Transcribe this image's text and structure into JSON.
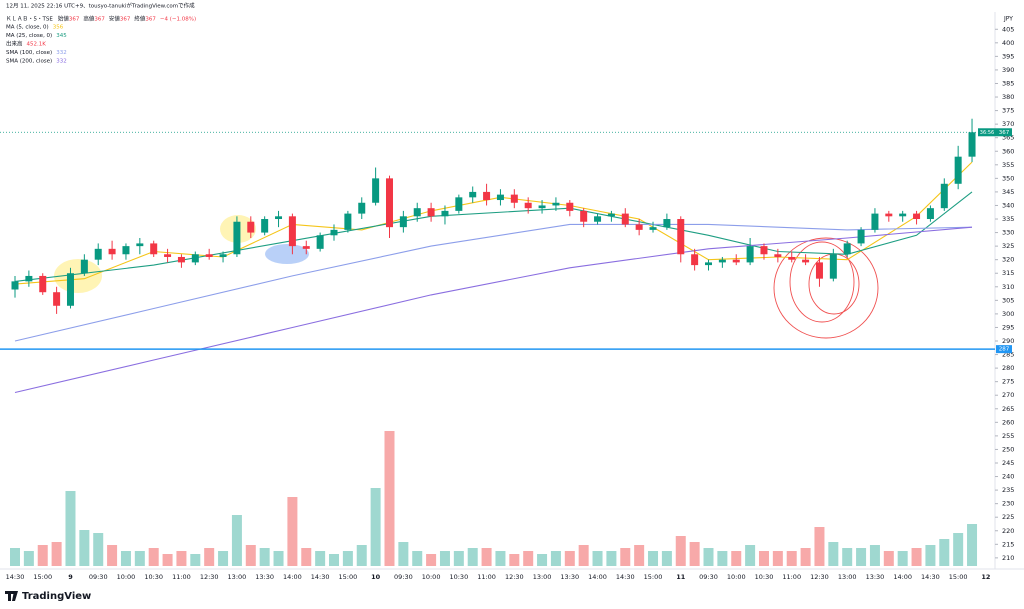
{
  "chart_data": {
    "type": "candlestick",
    "header": "12月 11, 2025 22:16 UTC+9、tousyo-tanukiがTradingView.comで作成",
    "symbol": "ＫＬＡＢ・5・TSE",
    "ohlc_legend": [
      {
        "label": "始値",
        "value": 367
      },
      {
        "label": "高値",
        "value": 367
      },
      {
        "label": "安値",
        "value": 367
      },
      {
        "label": "終値",
        "value": 367
      }
    ],
    "change": "−4 (−1.08%)",
    "currency": "JPY",
    "brand": "TradingView",
    "volume_name": "出来高",
    "volume_last": "452.1K",
    "categories": [
      "14:30",
      null,
      "15:00",
      null,
      "9",
      null,
      "09:30",
      null,
      "10:00",
      null,
      "10:30",
      null,
      "11:00",
      null,
      "12:30",
      null,
      "13:00",
      null,
      "13:30",
      null,
      "14:00",
      null,
      "14:30",
      null,
      "15:00",
      null,
      "10",
      null,
      "09:30",
      null,
      "10:00",
      null,
      "10:30",
      null,
      "11:00",
      null,
      "12:30",
      null,
      "13:00",
      null,
      "13:30",
      null,
      "14:00",
      null,
      "14:30",
      null,
      "15:00",
      null,
      "11",
      null,
      "09:30",
      null,
      "10:00",
      null,
      "10:30",
      null,
      "11:00",
      null,
      "12:30",
      null,
      "13:00",
      null,
      "13:30",
      null,
      "14:00",
      null,
      "14:30",
      null,
      "15:00",
      null,
      "12"
    ],
    "ohlc": [
      [
        309,
        314,
        306,
        312
      ],
      [
        312,
        316,
        310,
        314
      ],
      [
        314,
        315,
        307,
        308
      ],
      [
        308,
        310,
        300,
        303
      ],
      [
        303,
        317,
        302,
        315
      ],
      [
        315,
        322,
        314,
        320
      ],
      [
        320,
        326,
        318,
        324
      ],
      [
        324,
        327,
        320,
        322
      ],
      [
        322,
        326,
        320,
        325
      ],
      [
        325,
        328,
        322,
        326
      ],
      [
        326,
        327,
        321,
        322
      ],
      [
        322,
        324,
        319,
        321
      ],
      [
        321,
        322,
        317,
        319
      ],
      [
        319,
        323,
        318,
        322
      ],
      [
        322,
        324,
        320,
        321
      ],
      [
        321,
        323,
        319,
        322
      ],
      [
        322,
        336,
        321,
        334
      ],
      [
        334,
        336,
        328,
        330
      ],
      [
        330,
        336,
        329,
        335
      ],
      [
        335,
        338,
        332,
        336
      ],
      [
        336,
        337,
        322,
        325
      ],
      [
        325,
        327,
        322,
        324
      ],
      [
        324,
        330,
        323,
        329
      ],
      [
        329,
        333,
        327,
        331
      ],
      [
        331,
        338,
        330,
        337
      ],
      [
        337,
        343,
        335,
        341
      ],
      [
        341,
        354,
        340,
        350
      ],
      [
        350,
        351,
        328,
        332
      ],
      [
        332,
        338,
        330,
        336
      ],
      [
        336,
        341,
        334,
        339
      ],
      [
        339,
        341,
        334,
        336
      ],
      [
        336,
        340,
        333,
        338
      ],
      [
        338,
        344,
        337,
        343
      ],
      [
        343,
        347,
        341,
        345
      ],
      [
        345,
        348,
        340,
        342
      ],
      [
        342,
        346,
        340,
        344
      ],
      [
        344,
        346,
        339,
        341
      ],
      [
        341,
        343,
        337,
        339
      ],
      [
        339,
        342,
        337,
        340
      ],
      [
        340,
        343,
        338,
        341
      ],
      [
        341,
        342,
        336,
        338
      ],
      [
        338,
        339,
        332,
        334
      ],
      [
        334,
        337,
        333,
        336
      ],
      [
        336,
        338,
        334,
        337
      ],
      [
        337,
        339,
        332,
        333
      ],
      [
        333,
        335,
        329,
        331
      ],
      [
        331,
        334,
        330,
        332
      ],
      [
        332,
        337,
        331,
        335
      ],
      [
        335,
        336,
        319,
        322
      ],
      [
        322,
        324,
        316,
        318
      ],
      [
        318,
        320,
        316,
        319
      ],
      [
        319,
        321,
        317,
        320
      ],
      [
        320,
        322,
        318,
        319
      ],
      [
        319,
        328,
        318,
        325
      ],
      [
        325,
        326,
        320,
        322
      ],
      [
        322,
        324,
        319,
        321
      ],
      [
        321,
        323,
        319,
        320
      ],
      [
        320,
        322,
        318,
        319
      ],
      [
        319,
        321,
        310,
        313
      ],
      [
        313,
        324,
        312,
        322
      ],
      [
        322,
        327,
        321,
        326
      ],
      [
        326,
        332,
        325,
        331
      ],
      [
        331,
        339,
        330,
        337
      ],
      [
        337,
        338,
        334,
        336
      ],
      [
        336,
        338,
        334,
        337
      ],
      [
        337,
        338,
        333,
        335
      ],
      [
        335,
        340,
        334,
        339
      ],
      [
        339,
        350,
        338,
        348
      ],
      [
        348,
        362,
        346,
        358
      ],
      [
        358,
        372,
        356,
        367
      ],
      null
    ],
    "volume": [
      6,
      5,
      7,
      8,
      25,
      12,
      11,
      7,
      5,
      5,
      6,
      4,
      5,
      4,
      6,
      5,
      17,
      7,
      6,
      5,
      23,
      6,
      5,
      4,
      5,
      7,
      26,
      45,
      8,
      5,
      4,
      5,
      5,
      6,
      6,
      5,
      4,
      5,
      4,
      5,
      5,
      7,
      5,
      5,
      6,
      7,
      5,
      5,
      10,
      8,
      6,
      5,
      5,
      7,
      5,
      5,
      5,
      6,
      13,
      8,
      6,
      6,
      7,
      5,
      5,
      6,
      7,
      9,
      11,
      14,
      null
    ],
    "up_color": "#089981",
    "down_color": "#f23645",
    "volume_up_color": "#9fd8d0",
    "volume_down_color": "#f7a9a9",
    "lines": [
      {
        "name": "MA (5, close, 0)",
        "last": 356,
        "color": "#f5c518",
        "x": [
          0,
          5,
          10,
          15,
          20,
          25,
          30,
          35,
          40,
          45,
          50,
          55,
          60,
          65,
          69
        ],
        "values": [
          311,
          313,
          323,
          321,
          333,
          331,
          338,
          343,
          340,
          335,
          320,
          321,
          320,
          336,
          356
        ]
      },
      {
        "name": "MA (25, close, 0)",
        "last": 345,
        "color": "#1e9e83",
        "x": [
          0,
          10,
          20,
          30,
          40,
          50,
          55,
          60,
          65,
          69
        ],
        "values": [
          312,
          318,
          327,
          336,
          339,
          329,
          323,
          322,
          329,
          345
        ]
      },
      {
        "name": "SMA (100, close)",
        "last": 332,
        "color": "#8c9eea",
        "x": [
          0,
          10,
          20,
          30,
          40,
          50,
          60,
          69
        ],
        "values": [
          290,
          302,
          314,
          325,
          333,
          333,
          331,
          332
        ]
      },
      {
        "name": "SMA (200, close)",
        "last": 332,
        "color": "#8a6ee0",
        "x": [
          0,
          10,
          20,
          30,
          40,
          50,
          60,
          69
        ],
        "values": [
          271,
          283,
          295,
          307,
          317,
          324,
          328,
          332
        ]
      }
    ],
    "hline": {
      "value": 287,
      "color": "#2196f3"
    },
    "last_price": 367,
    "countdown": "36:56",
    "ylim": [
      207,
      411
    ],
    "vlim": [
      0,
      100
    ],
    "yticks": [
      210,
      215,
      220,
      225,
      230,
      235,
      240,
      245,
      250,
      255,
      260,
      265,
      270,
      275,
      280,
      285,
      290,
      295,
      300,
      305,
      310,
      315,
      320,
      325,
      330,
      335,
      340,
      345,
      350,
      355,
      360,
      365,
      370,
      375,
      380,
      385,
      390,
      395,
      400,
      405
    ]
  }
}
